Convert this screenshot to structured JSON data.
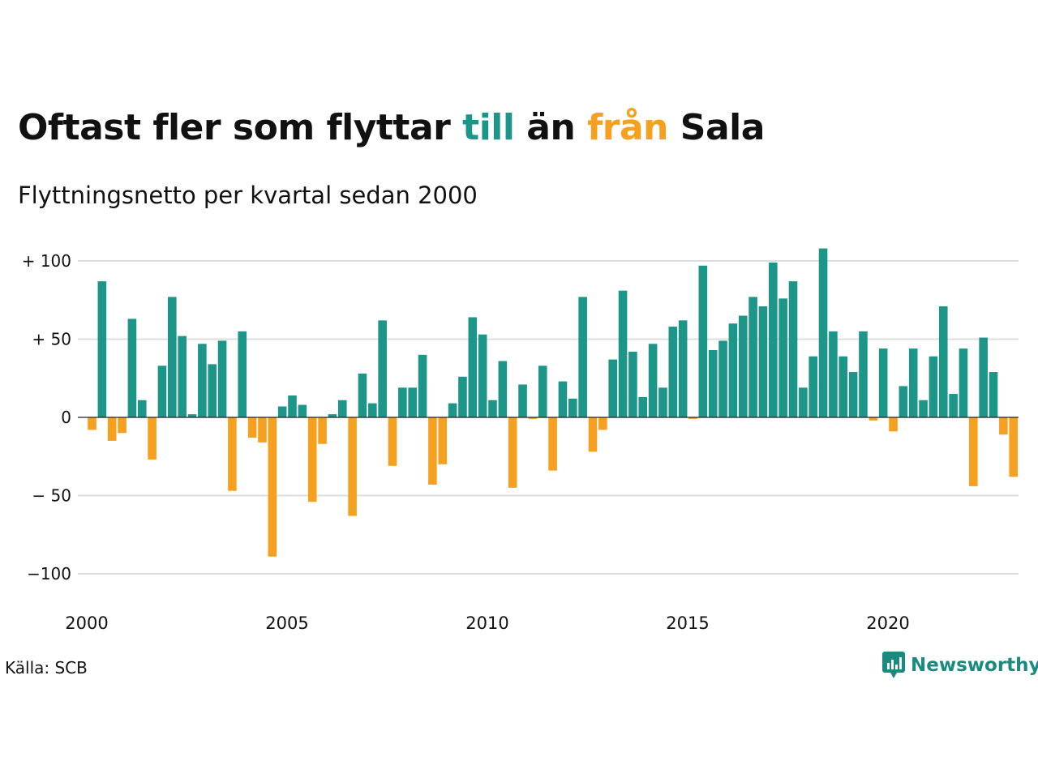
{
  "title": {
    "part1": "Oftast fler som flyttar ",
    "till": "till",
    "part2": " än ",
    "fran": "från",
    "part3": " Sala"
  },
  "subtitle": "Flyttningsnetto per kvartal sedan 2000",
  "source": "Källa: SCB",
  "brand": "Newsworthy",
  "colors": {
    "positive": "#1b9688",
    "negative": "#f5a01f",
    "text": "#111111",
    "grid": "#dddddd",
    "brand": "#1b8a7e"
  },
  "chart_data": {
    "type": "bar",
    "title": "Oftast fler som flyttar till än från Sala",
    "subtitle": "Flyttningsnetto per kvartal sedan 2000",
    "x_start_year": 2000,
    "periods_per_year": 4,
    "x_ticks": [
      "2000",
      "2005",
      "2010",
      "2015",
      "2020"
    ],
    "y_ticks": [
      {
        "value": 100,
        "label": "+ 100"
      },
      {
        "value": 50,
        "label": "+  50"
      },
      {
        "value": 0,
        "label": "0"
      },
      {
        "value": -50,
        "label": "− 50"
      },
      {
        "value": -100,
        "label": "−100"
      }
    ],
    "ylim": [
      -110,
      110
    ],
    "grid": true,
    "values": [
      -8,
      87,
      -15,
      -10,
      63,
      11,
      -27,
      33,
      77,
      52,
      2,
      47,
      34,
      49,
      -47,
      55,
      -13,
      -16,
      -89,
      7,
      14,
      8,
      -54,
      -17,
      2,
      11,
      -63,
      28,
      9,
      62,
      -31,
      19,
      19,
      40,
      -43,
      -30,
      9,
      26,
      64,
      53,
      11,
      36,
      -45,
      21,
      -1,
      33,
      -34,
      23,
      12,
      77,
      -22,
      -8,
      37,
      81,
      42,
      13,
      47,
      19,
      58,
      62,
      -1,
      97,
      43,
      49,
      60,
      65,
      77,
      71,
      99,
      76,
      87,
      19,
      39,
      108,
      55,
      39,
      29,
      55,
      -2,
      44,
      -9,
      20,
      44,
      11,
      39,
      71,
      15,
      44,
      -44,
      51,
      29,
      -11,
      -38
    ]
  }
}
